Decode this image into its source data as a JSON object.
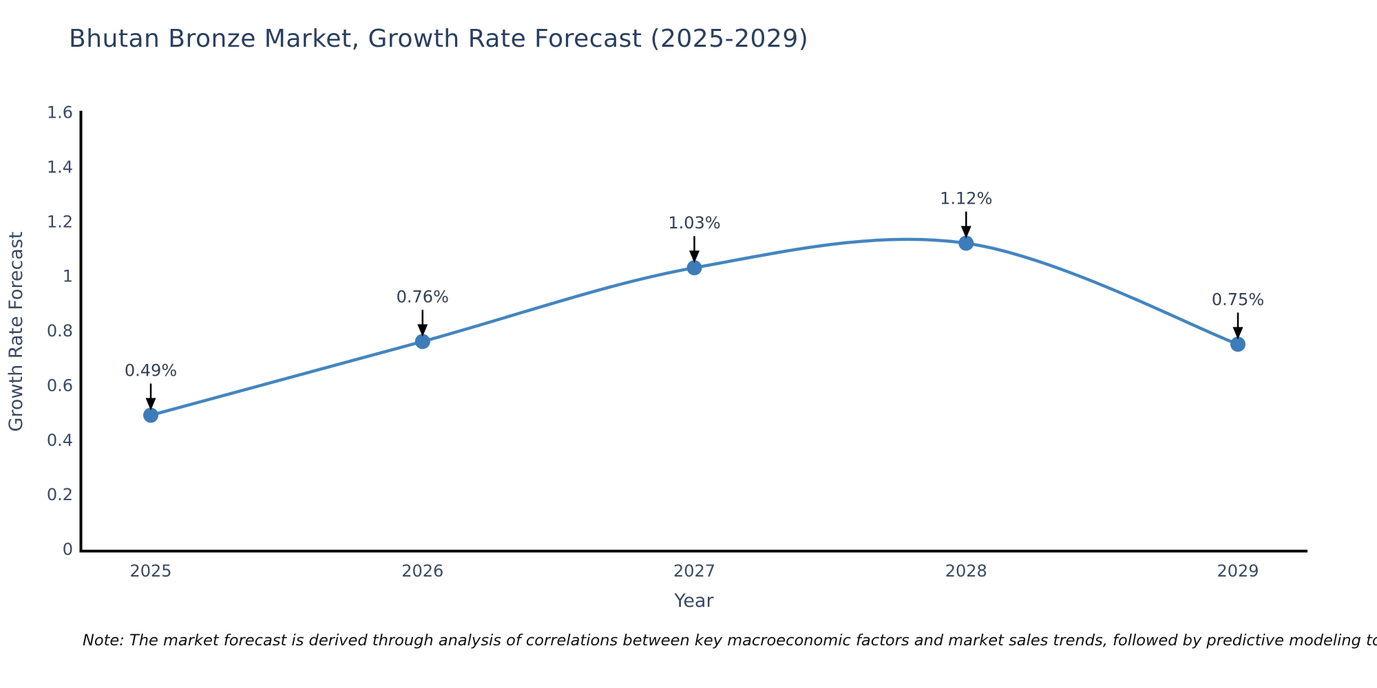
{
  "title": "Bhutan Bronze Market, Growth Rate Forecast (2025-2029)",
  "note": "Note: The market forecast is derived through analysis of correlations between key macroeconomic factors and market sales trends, followed by predictive modeling to project future sales",
  "colors": {
    "line": "#4385bf",
    "marker": "#3d7cb8",
    "axis": "#000000",
    "chart_text": "#3b4a63",
    "annotation_text": "#333f54",
    "arrow": "#000000",
    "title_text": "#2a3f5f",
    "note_text": "#111111",
    "background": "#ffffff"
  },
  "chart_data": {
    "type": "line",
    "curve": "spline",
    "title": "Bhutan Bronze Market, Growth Rate Forecast (2025-2029)",
    "xlabel": "Year",
    "ylabel": "Growth Rate Forecast",
    "categories": [
      "2025",
      "2026",
      "2027",
      "2028",
      "2029"
    ],
    "values": [
      0.49,
      0.76,
      1.03,
      1.12,
      0.75
    ],
    "point_labels": [
      "0.49%",
      "0.76%",
      "1.03%",
      "1.12%",
      "0.75%"
    ],
    "ylim": [
      0,
      1.6
    ],
    "yticks": [
      "0",
      "0.2",
      "0.4",
      "0.6",
      "0.8",
      "1",
      "1.2",
      "1.4",
      "1.6"
    ],
    "grid": false,
    "legend_position": "none",
    "annotations": "value labels with downward arrows at each data point"
  }
}
